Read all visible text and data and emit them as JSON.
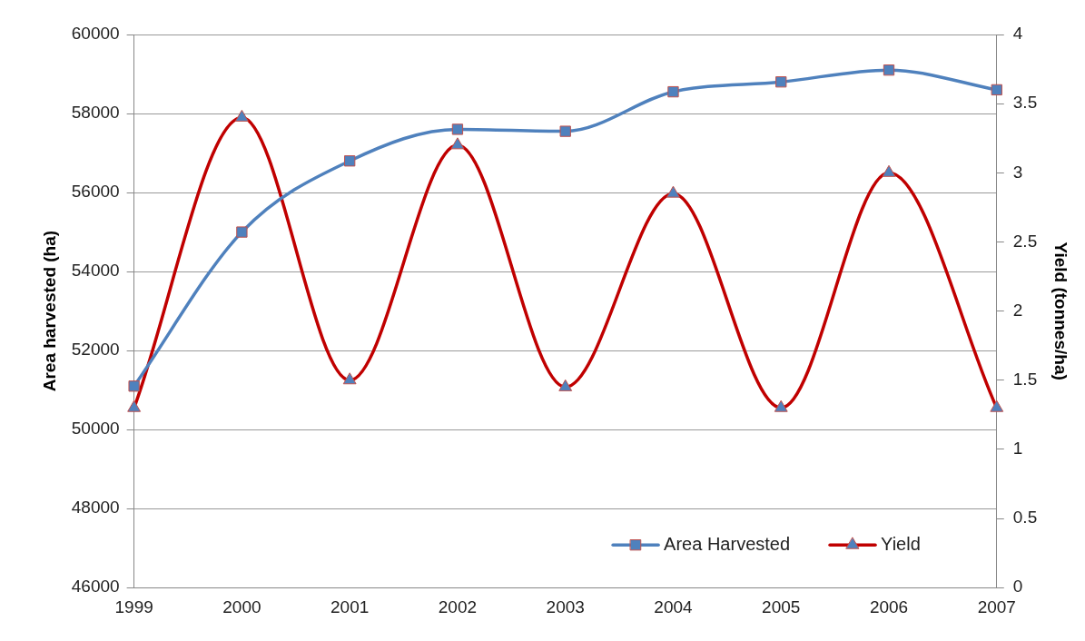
{
  "chart_data": {
    "type": "line",
    "categories": [
      "1999",
      "2000",
      "2001",
      "2002",
      "2003",
      "2004",
      "2005",
      "2006",
      "2007"
    ],
    "ylabel": "Area harvested (ha)",
    "y2label": "Yield (tonnes/ha)",
    "ylim": [
      46000,
      60000
    ],
    "yticks": [
      46000,
      48000,
      50000,
      52000,
      54000,
      56000,
      58000,
      60000
    ],
    "y2lim": [
      0,
      4
    ],
    "y2ticks": [
      0,
      0.5,
      1,
      1.5,
      2,
      2.5,
      3,
      3.5,
      4
    ],
    "grid": "y",
    "legend": "bottom right",
    "line_style": "solid",
    "series": [
      {
        "name": "Area Harvested",
        "color": "#4f81bd",
        "marker": "square",
        "values": [
          51100,
          55000,
          56800,
          57600,
          57550,
          58550,
          58800,
          59100,
          58600
        ]
      },
      {
        "name": "Yield",
        "color": "#c00000",
        "marker": "triangle",
        "axis": "y2",
        "values": [
          1.3,
          3.4,
          1.5,
          3.2,
          1.45,
          2.85,
          1.3,
          3.0,
          1.3
        ]
      }
    ]
  }
}
